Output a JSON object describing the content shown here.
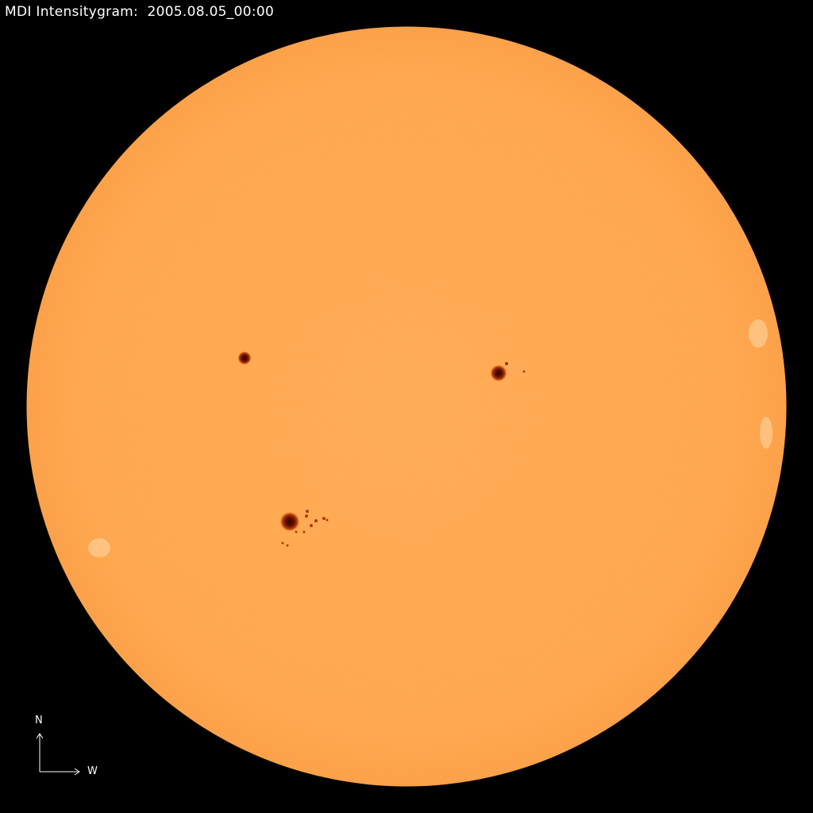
{
  "header": {
    "title": "MDI Intensitygram:  2005.08.05_00:00"
  },
  "image": {
    "subject": "solar-disk",
    "disk_color": "#FFA64D",
    "background_color": "#000000",
    "sunspot_color": "#7A1A00"
  },
  "compass": {
    "north_label": "N",
    "west_label": "W"
  }
}
